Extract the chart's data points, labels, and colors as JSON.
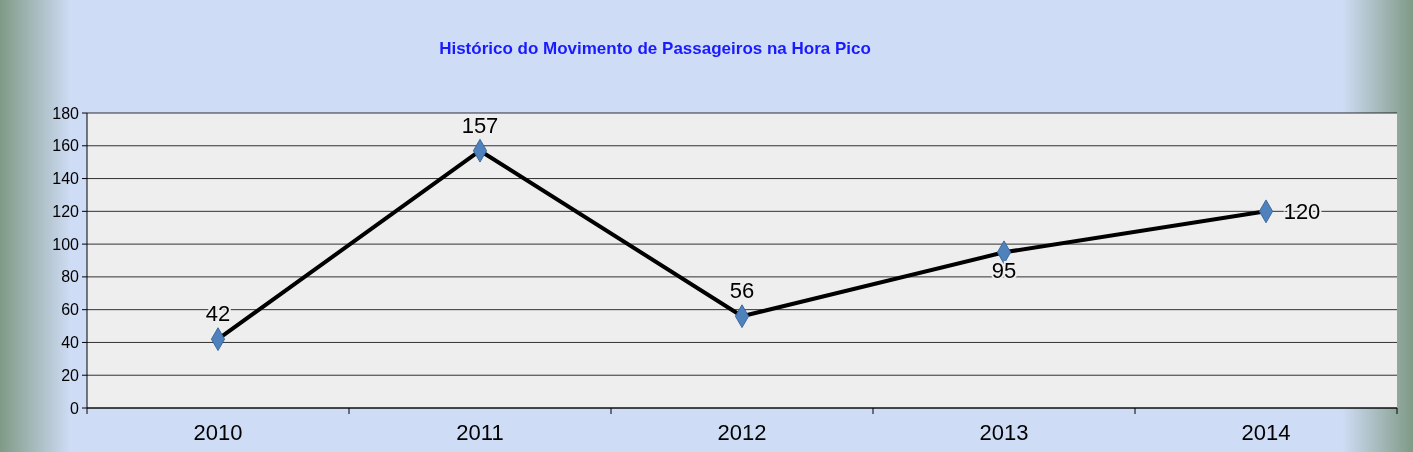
{
  "chart_data": {
    "type": "line",
    "title": "Histórico do Movimento de Passageiros na Hora Pico",
    "categories": [
      "2010",
      "2011",
      "2012",
      "2013",
      "2014"
    ],
    "series": [
      {
        "color": "#000000",
        "values": [
          42,
          157,
          56,
          95,
          120
        ]
      }
    ],
    "ylim": [
      0,
      180
    ],
    "yticks": [
      0,
      20,
      40,
      60,
      80,
      100,
      120,
      140,
      160,
      180
    ],
    "grid": "y",
    "marker": "diamond",
    "line_style": "solid",
    "data_labels": true
  }
}
